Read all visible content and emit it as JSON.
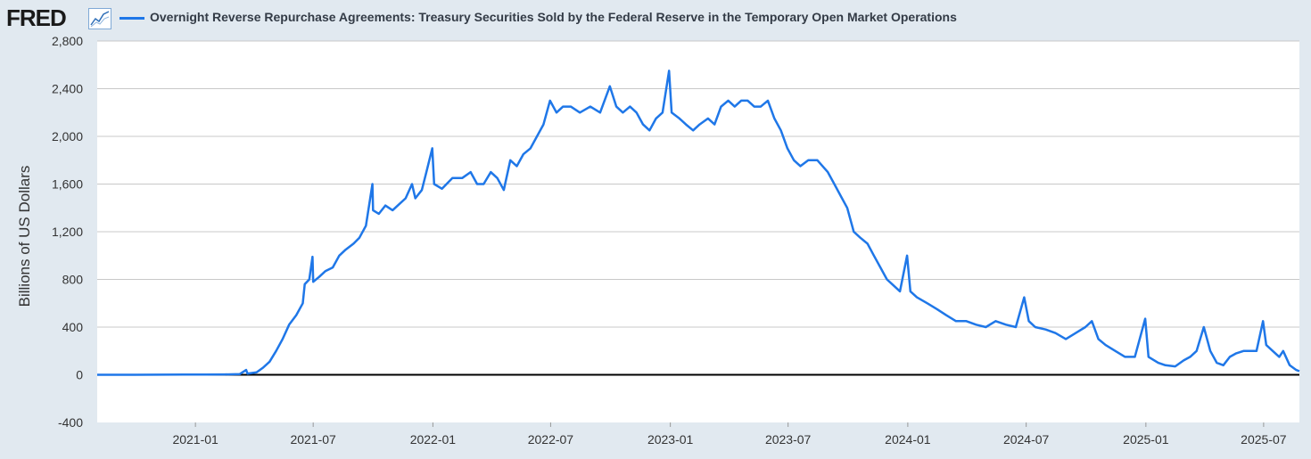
{
  "header": {
    "logo_text": "FRED",
    "logo_icon": "line-chart-icon",
    "series_title": "Overnight Reverse Repurchase Agreements: Treasury Securities Sold by the Federal Reserve in the Temporary Open Market Operations"
  },
  "colors": {
    "series": "#1f77e8",
    "background": "#e1e9f0",
    "plot_area": "#ffffff",
    "gridline": "#c8c8c8",
    "zero_line": "#000000"
  },
  "chart_data": {
    "type": "line",
    "title": "Overnight Reverse Repurchase Agreements: Treasury Securities Sold by the Federal Reserve in the Temporary Open Market Operations",
    "ylabel": "Billions of US Dollars",
    "xlabel": "",
    "ylim": [
      -400,
      2800
    ],
    "xlim": [
      "2020-08-03",
      "2025-08-25"
    ],
    "grid": true,
    "legend": "top-left",
    "yticks": [
      -400,
      0,
      400,
      800,
      1200,
      1600,
      2000,
      2400,
      2800
    ],
    "ytick_labels": [
      "-400",
      "0",
      "400",
      "800",
      "1,200",
      "1,600",
      "2,000",
      "2,400",
      "2,800"
    ],
    "xticks": [
      "2021-01-01",
      "2021-07-01",
      "2022-01-01",
      "2022-07-01",
      "2023-01-01",
      "2023-07-01",
      "2024-01-01",
      "2024-07-01",
      "2025-01-01",
      "2025-07-01"
    ],
    "xtick_labels": [
      "2021-01",
      "2021-07",
      "2022-01",
      "2022-07",
      "2023-01",
      "2023-07",
      "2024-01",
      "2024-07",
      "2025-01",
      "2025-07"
    ],
    "series": [
      {
        "name": "Overnight Reverse Repurchase Agreements: Treasury Securities Sold by the Federal Reserve in the Temporary Open Market Operations",
        "points": [
          [
            "2020-08-03",
            0
          ],
          [
            "2020-10-01",
            0
          ],
          [
            "2020-12-15",
            2
          ],
          [
            "2021-01-15",
            2
          ],
          [
            "2021-02-15",
            3
          ],
          [
            "2021-03-10",
            5
          ],
          [
            "2021-03-20",
            40
          ],
          [
            "2021-03-22",
            10
          ],
          [
            "2021-04-05",
            20
          ],
          [
            "2021-04-15",
            60
          ],
          [
            "2021-04-25",
            110
          ],
          [
            "2021-05-05",
            200
          ],
          [
            "2021-05-15",
            300
          ],
          [
            "2021-05-25",
            420
          ],
          [
            "2021-06-05",
            500
          ],
          [
            "2021-06-15",
            600
          ],
          [
            "2021-06-18",
            760
          ],
          [
            "2021-06-25",
            800
          ],
          [
            "2021-06-30",
            990
          ],
          [
            "2021-07-01",
            780
          ],
          [
            "2021-07-10",
            820
          ],
          [
            "2021-07-20",
            870
          ],
          [
            "2021-07-31",
            900
          ],
          [
            "2021-08-10",
            1000
          ],
          [
            "2021-08-20",
            1050
          ],
          [
            "2021-09-01",
            1100
          ],
          [
            "2021-09-10",
            1150
          ],
          [
            "2021-09-20",
            1250
          ],
          [
            "2021-09-30",
            1600
          ],
          [
            "2021-10-01",
            1380
          ],
          [
            "2021-10-10",
            1350
          ],
          [
            "2021-10-20",
            1420
          ],
          [
            "2021-10-31",
            1380
          ],
          [
            "2021-11-10",
            1430
          ],
          [
            "2021-11-20",
            1480
          ],
          [
            "2021-11-30",
            1600
          ],
          [
            "2021-12-05",
            1480
          ],
          [
            "2021-12-15",
            1550
          ],
          [
            "2021-12-22",
            1700
          ],
          [
            "2021-12-31",
            1900
          ],
          [
            "2022-01-03",
            1600
          ],
          [
            "2022-01-15",
            1560
          ],
          [
            "2022-01-31",
            1650
          ],
          [
            "2022-02-15",
            1650
          ],
          [
            "2022-02-28",
            1700
          ],
          [
            "2022-03-10",
            1600
          ],
          [
            "2022-03-20",
            1600
          ],
          [
            "2022-03-31",
            1700
          ],
          [
            "2022-04-10",
            1650
          ],
          [
            "2022-04-20",
            1550
          ],
          [
            "2022-04-30",
            1800
          ],
          [
            "2022-05-10",
            1750
          ],
          [
            "2022-05-20",
            1850
          ],
          [
            "2022-05-31",
            1900
          ],
          [
            "2022-06-10",
            2000
          ],
          [
            "2022-06-20",
            2100
          ],
          [
            "2022-06-30",
            2300
          ],
          [
            "2022-07-10",
            2200
          ],
          [
            "2022-07-20",
            2250
          ],
          [
            "2022-08-01",
            2250
          ],
          [
            "2022-08-15",
            2200
          ],
          [
            "2022-08-31",
            2250
          ],
          [
            "2022-09-15",
            2200
          ],
          [
            "2022-09-30",
            2420
          ],
          [
            "2022-10-10",
            2250
          ],
          [
            "2022-10-20",
            2200
          ],
          [
            "2022-10-31",
            2250
          ],
          [
            "2022-11-10",
            2200
          ],
          [
            "2022-11-20",
            2100
          ],
          [
            "2022-11-30",
            2050
          ],
          [
            "2022-12-10",
            2150
          ],
          [
            "2022-12-20",
            2200
          ],
          [
            "2022-12-30",
            2550
          ],
          [
            "2023-01-03",
            2200
          ],
          [
            "2023-01-15",
            2150
          ],
          [
            "2023-01-25",
            2100
          ],
          [
            "2023-02-05",
            2050
          ],
          [
            "2023-02-15",
            2100
          ],
          [
            "2023-02-28",
            2150
          ],
          [
            "2023-03-10",
            2100
          ],
          [
            "2023-03-20",
            2250
          ],
          [
            "2023-03-31",
            2300
          ],
          [
            "2023-04-10",
            2250
          ],
          [
            "2023-04-20",
            2300
          ],
          [
            "2023-04-30",
            2300
          ],
          [
            "2023-05-10",
            2250
          ],
          [
            "2023-05-20",
            2250
          ],
          [
            "2023-05-31",
            2300
          ],
          [
            "2023-06-10",
            2150
          ],
          [
            "2023-06-20",
            2050
          ],
          [
            "2023-06-30",
            1900
          ],
          [
            "2023-07-10",
            1800
          ],
          [
            "2023-07-20",
            1750
          ],
          [
            "2023-08-01",
            1800
          ],
          [
            "2023-08-15",
            1800
          ],
          [
            "2023-08-31",
            1700
          ],
          [
            "2023-09-10",
            1600
          ],
          [
            "2023-09-20",
            1500
          ],
          [
            "2023-09-30",
            1400
          ],
          [
            "2023-10-10",
            1200
          ],
          [
            "2023-10-20",
            1150
          ],
          [
            "2023-10-31",
            1100
          ],
          [
            "2023-11-10",
            1000
          ],
          [
            "2023-11-20",
            900
          ],
          [
            "2023-11-30",
            800
          ],
          [
            "2023-12-10",
            750
          ],
          [
            "2023-12-20",
            700
          ],
          [
            "2023-12-31",
            1000
          ],
          [
            "2024-01-05",
            700
          ],
          [
            "2024-01-15",
            650
          ],
          [
            "2024-01-31",
            600
          ],
          [
            "2024-02-15",
            550
          ],
          [
            "2024-02-29",
            500
          ],
          [
            "2024-03-15",
            450
          ],
          [
            "2024-03-31",
            450
          ],
          [
            "2024-04-15",
            420
          ],
          [
            "2024-04-30",
            400
          ],
          [
            "2024-05-15",
            450
          ],
          [
            "2024-05-31",
            420
          ],
          [
            "2024-06-15",
            400
          ],
          [
            "2024-06-28",
            650
          ],
          [
            "2024-07-05",
            450
          ],
          [
            "2024-07-15",
            400
          ],
          [
            "2024-07-31",
            380
          ],
          [
            "2024-08-15",
            350
          ],
          [
            "2024-08-31",
            300
          ],
          [
            "2024-09-15",
            350
          ],
          [
            "2024-09-30",
            400
          ],
          [
            "2024-10-10",
            450
          ],
          [
            "2024-10-20",
            300
          ],
          [
            "2024-10-31",
            250
          ],
          [
            "2024-11-15",
            200
          ],
          [
            "2024-11-30",
            150
          ],
          [
            "2024-12-15",
            150
          ],
          [
            "2024-12-31",
            470
          ],
          [
            "2025-01-05",
            150
          ],
          [
            "2025-01-20",
            100
          ],
          [
            "2025-01-31",
            80
          ],
          [
            "2025-02-15",
            70
          ],
          [
            "2025-02-28",
            120
          ],
          [
            "2025-03-10",
            150
          ],
          [
            "2025-03-20",
            200
          ],
          [
            "2025-03-31",
            400
          ],
          [
            "2025-04-10",
            200
          ],
          [
            "2025-04-20",
            100
          ],
          [
            "2025-04-30",
            80
          ],
          [
            "2025-05-10",
            150
          ],
          [
            "2025-05-20",
            180
          ],
          [
            "2025-05-31",
            200
          ],
          [
            "2025-06-10",
            200
          ],
          [
            "2025-06-20",
            200
          ],
          [
            "2025-06-30",
            450
          ],
          [
            "2025-07-05",
            250
          ],
          [
            "2025-07-15",
            200
          ],
          [
            "2025-07-25",
            150
          ],
          [
            "2025-07-31",
            200
          ],
          [
            "2025-08-10",
            80
          ],
          [
            "2025-08-20",
            40
          ],
          [
            "2025-08-25",
            30
          ]
        ]
      }
    ]
  }
}
